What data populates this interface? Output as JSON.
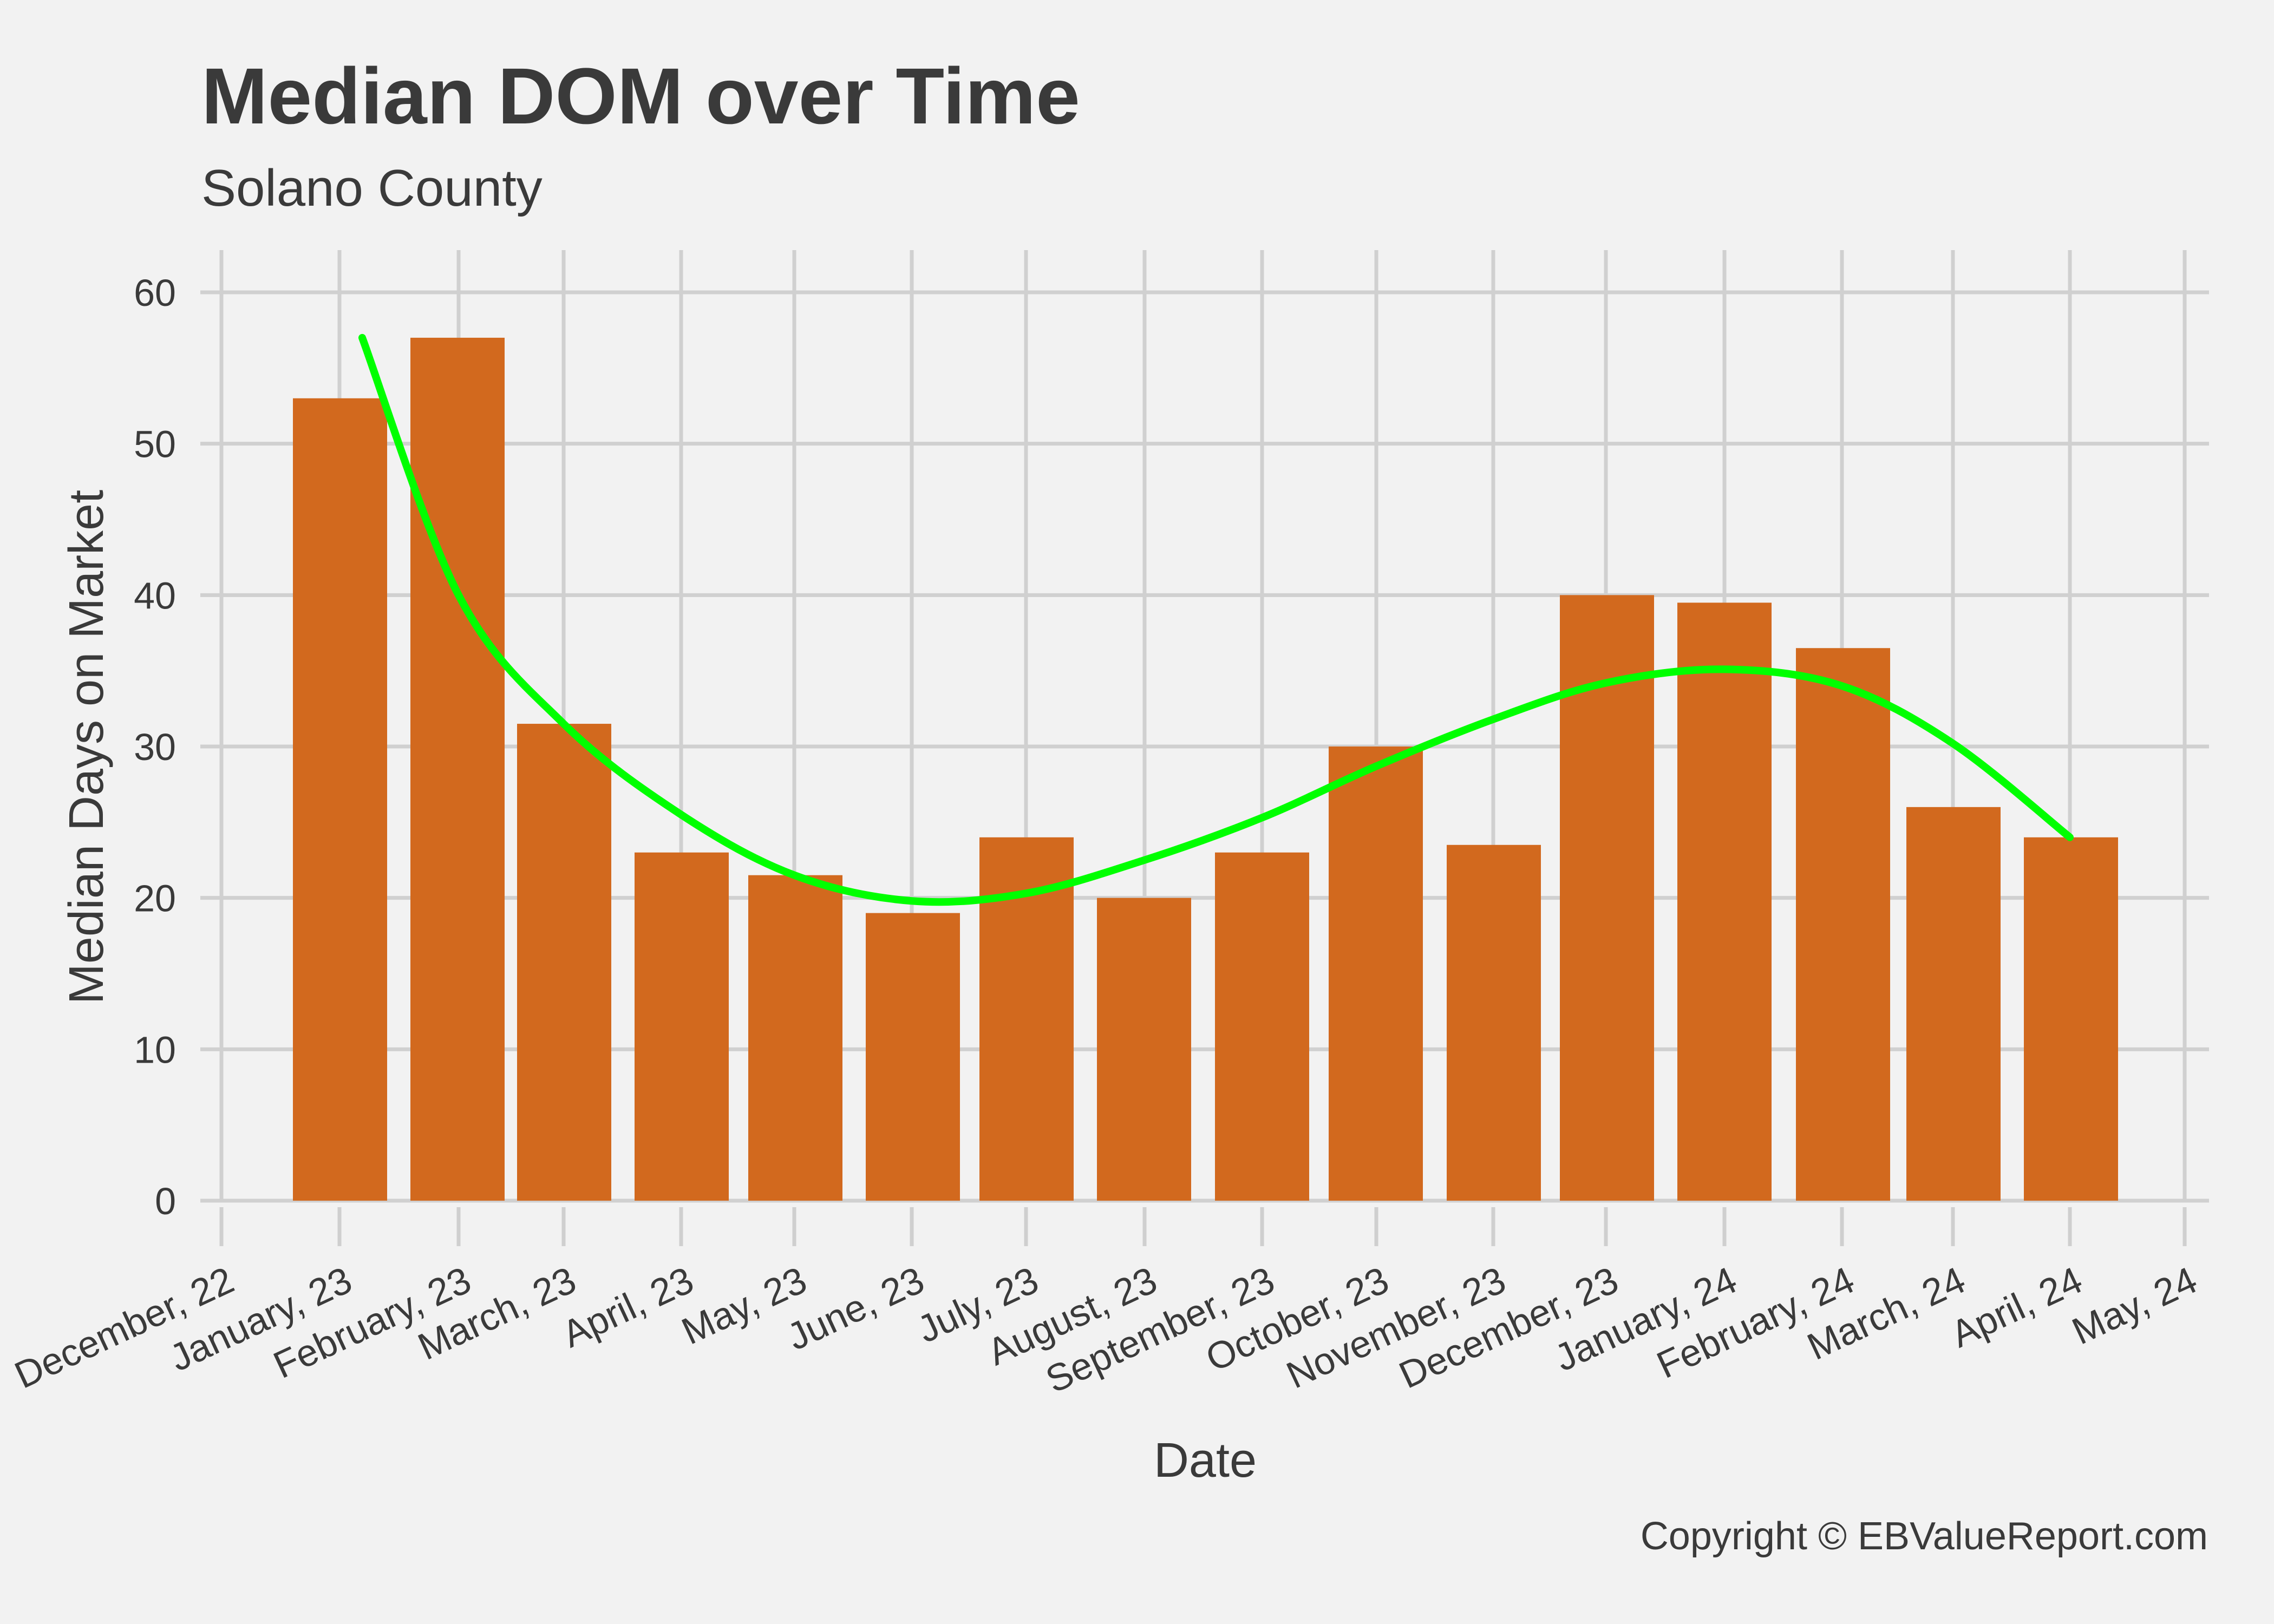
{
  "chart_data": {
    "type": "bar",
    "title": "Median DOM over Time",
    "subtitle": "Solano County",
    "xlabel": "Date",
    "ylabel": "Median Days on Market",
    "caption": "Copyright  © EBValueReport.com",
    "ylim": [
      0,
      62
    ],
    "yticks": [
      0,
      10,
      20,
      30,
      40,
      50,
      60
    ],
    "x_tick_labels": [
      "December, 22",
      "January, 23",
      "February, 23",
      "March, 23",
      "April, 23",
      "May, 23",
      "June, 23",
      "July, 23",
      "August, 23",
      "September, 23",
      "October, 23",
      "November, 23",
      "December, 23",
      "January, 24",
      "February, 24",
      "March, 24",
      "April, 24",
      "May, 24"
    ],
    "categories": [
      "January, 23",
      "February, 23",
      "March, 23",
      "April, 23",
      "May, 23",
      "June, 23",
      "July, 23",
      "August, 23",
      "September, 23",
      "October, 23",
      "November, 23",
      "December, 23",
      "January, 24",
      "February, 24",
      "March, 24",
      "April, 24"
    ],
    "values": [
      53,
      57,
      31.5,
      23,
      21.5,
      19,
      24,
      20,
      23,
      30,
      23.5,
      40,
      39.5,
      36.5,
      26,
      24
    ],
    "bar_color": "#d2691e",
    "trend": {
      "type": "smooth",
      "color": "#00ff00",
      "values": [
        57,
        40,
        31.5,
        25.5,
        21.5,
        19.8,
        20.3,
        22.5,
        25.3,
        28.7,
        31.8,
        34.2,
        35.1,
        34,
        30.2,
        24
      ]
    },
    "grid": true
  }
}
